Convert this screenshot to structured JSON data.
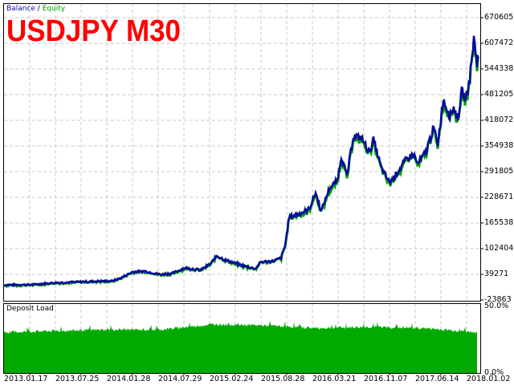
{
  "header": {
    "legend_balance": "Balance",
    "legend_separator": "/",
    "legend_equity": "Equity",
    "title": "USDJPY M30"
  },
  "deposit_load": {
    "label": "Deposit Load",
    "y_top": "50.0%",
    "y_bottom": "0.0%"
  },
  "colors": {
    "balance": "#0a0aa0",
    "equity": "#00a000",
    "deposit_load": "#00aa00",
    "title": "#ff0000",
    "grid": "#c8c8c8"
  },
  "chart_data": [
    {
      "type": "line",
      "title": "USDJPY M30",
      "xlabel": "",
      "ylabel": "",
      "legend": [
        "Balance",
        "Equity"
      ],
      "legend_position": "top-left",
      "grid": true,
      "ylim": [
        -23863,
        670605
      ],
      "y_ticks": [
        "670605",
        "607472",
        "544338",
        "481205",
        "418072",
        "354938",
        "291805",
        "228671",
        "165538",
        "102404",
        "39271",
        "-23863"
      ],
      "x_ticks": [
        "2013.01.17",
        "2013.07.25",
        "2014.01.28",
        "2014.07.29",
        "2015.02.24",
        "2015.08.28",
        "2016.03.21",
        "2016.11.07",
        "2017.06.14",
        "2018.01.02"
      ],
      "series": [
        {
          "name": "Balance",
          "x": [
            "2013.01.17",
            "2013.07.25",
            "2014.01.28",
            "2014.07.29",
            "2015.02.24",
            "2015.08.28",
            "2016.03.21",
            "2016.11.07",
            "2017.06.14",
            "2018.01.02"
          ],
          "values": [
            13000,
            22000,
            45000,
            46000,
            80000,
            110000,
            290000,
            330000,
            390000,
            600000
          ]
        },
        {
          "name": "Equity",
          "x": [
            "2013.01.17",
            "2013.07.25",
            "2014.01.28",
            "2014.07.29",
            "2015.02.24",
            "2015.08.28",
            "2016.03.21",
            "2016.11.07",
            "2017.06.14",
            "2018.01.02"
          ],
          "values": [
            12000,
            21000,
            44000,
            45000,
            78000,
            108000,
            287000,
            328000,
            387000,
            595000
          ]
        }
      ]
    },
    {
      "type": "area",
      "title": "Deposit Load",
      "ylim": [
        0,
        50
      ],
      "y_ticks": [
        "0.0%",
        "50.0%"
      ],
      "x_ticks": [
        "2013.01.17",
        "2013.07.25",
        "2014.01.28",
        "2014.07.29",
        "2015.02.24",
        "2015.08.28",
        "2016.03.21",
        "2016.11.07",
        "2017.06.14",
        "2018.01.02"
      ],
      "series": [
        {
          "name": "Deposit Load",
          "x": [
            "2013.01.17",
            "2013.07.25",
            "2014.01.28",
            "2014.07.29",
            "2015.02.24",
            "2015.08.28",
            "2016.03.21",
            "2016.11.07",
            "2017.06.14",
            "2018.01.02"
          ],
          "values": [
            30,
            31,
            32,
            32,
            36,
            35,
            33,
            34,
            33,
            30
          ]
        }
      ]
    }
  ]
}
